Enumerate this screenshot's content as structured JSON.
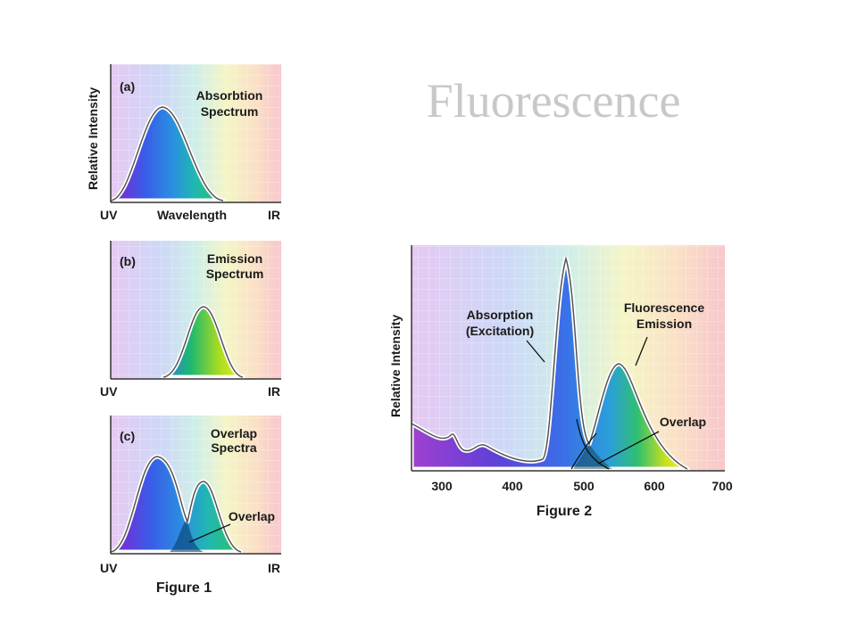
{
  "slide": {
    "title": "Fluorescence"
  },
  "figure1": {
    "caption": "Figure 1",
    "y_label": "Relative Intensity",
    "panels": [
      {
        "id": "a",
        "tag": "(a)",
        "title": [
          "Absorbtion",
          "Spectrum"
        ],
        "x_left": "UV",
        "x_center": "Wavelength",
        "x_right": "IR"
      },
      {
        "id": "b",
        "tag": "(b)",
        "title": [
          "Emission",
          "Spectrum"
        ],
        "x_left": "UV",
        "x_center": "",
        "x_right": "IR"
      },
      {
        "id": "c",
        "tag": "(c)",
        "title": [
          "Overlap",
          "Spectra"
        ],
        "x_left": "UV",
        "x_center": "",
        "x_right": "IR",
        "annotation": "Overlap"
      }
    ]
  },
  "figure2": {
    "caption": "Figure 2",
    "y_label": "Relative Intensity",
    "x_ticks": [
      "300",
      "400",
      "500",
      "600",
      "700"
    ],
    "annotations": {
      "absorption": [
        "Absorption",
        "(Excitation)"
      ],
      "emission": [
        "Fluorescence",
        "Emission"
      ],
      "overlap": "Overlap"
    }
  },
  "chart_data": {
    "type": "area",
    "x_range": [
      260,
      700
    ],
    "series": [
      {
        "name": "Absorption (Excitation)",
        "peak_x": 475
      },
      {
        "name": "Fluorescence Emission",
        "peak_x": 548
      }
    ]
  }
}
